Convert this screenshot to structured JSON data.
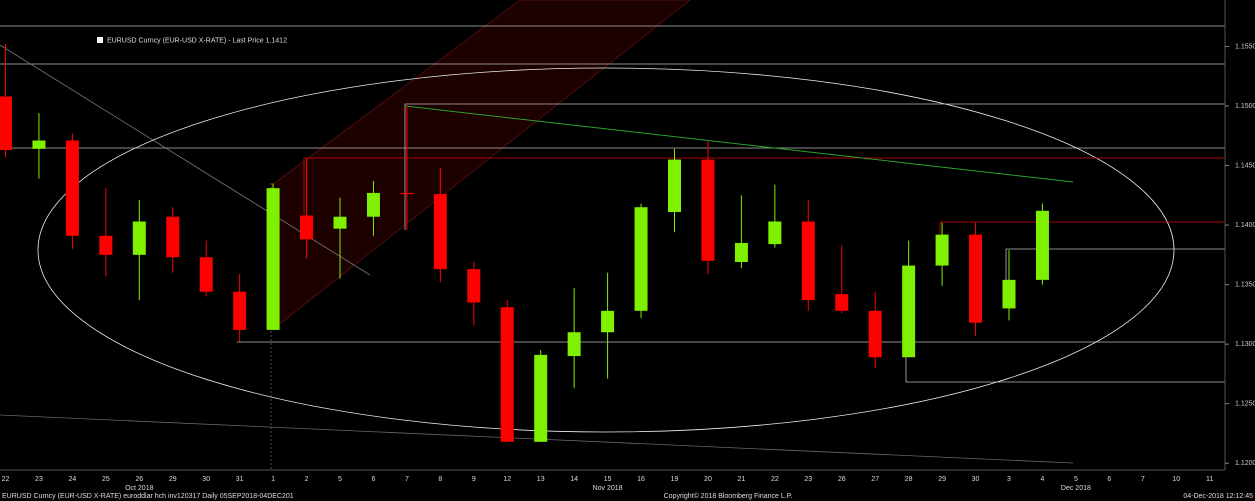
{
  "chart_data": {
    "type": "candlestick",
    "legend_label": "EURUSD Curncy (EUR-USD X-RATE) - Last Price 1.1412",
    "categories": [
      "22",
      "23",
      "24",
      "25",
      "26",
      "29",
      "30",
      "31",
      "1",
      "2",
      "5",
      "6",
      "7",
      "8",
      "9",
      "12",
      "13",
      "14",
      "15",
      "16",
      "19",
      "20",
      "21",
      "22",
      "23",
      "26",
      "27",
      "28",
      "29",
      "30",
      "3",
      "4",
      "5",
      "6",
      "7",
      "10",
      "11"
    ],
    "x_groups": [
      {
        "label": "Oct 2018",
        "at": 4
      },
      {
        "label": "Nov 2018",
        "at": 18
      },
      {
        "label": "Dec 2018",
        "at": 32
      }
    ],
    "open": [
      1.1508,
      1.1464,
      1.1471,
      1.1391,
      1.1375,
      1.1407,
      1.1373,
      1.1344,
      1.1312,
      1.1408,
      1.1397,
      1.1407,
      1.1427,
      1.1426,
      1.1363,
      1.1331,
      1.1218,
      1.129,
      1.131,
      1.1328,
      1.1411,
      1.1455,
      1.1369,
      1.1384,
      1.1403,
      1.1342,
      1.1328,
      1.1289,
      1.1366,
      1.1392,
      1.133,
      1.1354,
      null,
      null,
      null,
      null,
      null
    ],
    "high": [
      1.1552,
      1.1494,
      1.1477,
      1.1431,
      1.1421,
      1.1415,
      1.1387,
      1.1359,
      1.1435,
      1.1456,
      1.1423,
      1.1437,
      1.15,
      1.1448,
      1.1369,
      1.1337,
      1.1295,
      1.1347,
      1.136,
      1.1418,
      1.1464,
      1.1471,
      1.1425,
      1.1434,
      1.1421,
      1.1383,
      1.1344,
      1.1387,
      1.1402,
      1.1402,
      1.1379,
      1.1418,
      null,
      null,
      null,
      null,
      null
    ],
    "low": [
      1.1457,
      1.1439,
      1.138,
      1.1357,
      1.1337,
      1.136,
      1.134,
      1.1302,
      1.1312,
      1.1372,
      1.1355,
      1.1391,
      1.1396,
      1.1352,
      1.1316,
      1.1218,
      1.1218,
      1.1263,
      1.1271,
      1.1322,
      1.1394,
      1.1359,
      1.1364,
      1.1381,
      1.1328,
      1.1326,
      1.128,
      1.1289,
      1.1349,
      1.1307,
      1.132,
      1.135,
      null,
      null,
      null,
      null,
      null
    ],
    "close": [
      1.1463,
      1.1471,
      1.1391,
      1.1375,
      1.1403,
      1.1373,
      1.1344,
      1.1312,
      1.1431,
      1.1388,
      1.1407,
      1.1427,
      1.1426,
      1.1363,
      1.1335,
      1.1218,
      1.1291,
      1.131,
      1.1328,
      1.1415,
      1.1455,
      1.137,
      1.1385,
      1.1403,
      1.1337,
      1.1328,
      1.1289,
      1.1366,
      1.1392,
      1.1318,
      1.1354,
      1.1412,
      null,
      null,
      null,
      null,
      null
    ],
    "up_color": "#7ff000",
    "down_color": "#ff0000",
    "ylim": [
      1.1196,
      1.1589
    ],
    "yticks": [
      {
        "value": 1.12,
        "label": "1.1200"
      },
      {
        "value": 1.125,
        "label": "1.1250"
      },
      {
        "value": 1.13,
        "label": "1.1300"
      },
      {
        "value": 1.135,
        "label": "1.1350"
      },
      {
        "value": 1.14,
        "label": "1.1400"
      },
      {
        "value": 1.145,
        "label": "1.1450"
      },
      {
        "value": 1.15,
        "label": "1.1500"
      },
      {
        "value": 1.155,
        "label": "1.1550"
      }
    ],
    "footer_left": "EURUSD Curncy (EUR-USD X-RATE) euroddlar hch inv120317  Daily 05SEP2018-04DEC201",
    "footer_center": "Copyright© 2018 Bloomberg Finance L.P.",
    "footer_right": "04-Dec-2018 12:12:45"
  }
}
